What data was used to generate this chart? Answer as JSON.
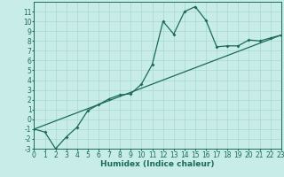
{
  "xlabel": "Humidex (Indice chaleur)",
  "bg_color": "#c8ece8",
  "grid_color": "#a8d8d0",
  "line_color": "#1a6b5a",
  "curve_x": [
    0,
    1,
    2,
    3,
    4,
    5,
    6,
    7,
    8,
    9,
    10,
    11,
    12,
    13,
    14,
    15,
    16,
    17,
    18,
    19,
    20,
    21,
    22,
    23
  ],
  "curve_y": [
    -1.0,
    -1.3,
    -3.0,
    -1.8,
    -0.8,
    0.9,
    1.5,
    2.1,
    2.5,
    2.6,
    3.6,
    5.6,
    10.0,
    8.7,
    11.0,
    11.5,
    10.1,
    7.4,
    7.5,
    7.5,
    8.1,
    8.0,
    8.3,
    8.6
  ],
  "trend_x": [
    0,
    23
  ],
  "trend_y": [
    -1.0,
    8.6
  ],
  "ylim": [
    -3,
    12
  ],
  "xlim": [
    0,
    23
  ],
  "yticks": [
    -3,
    -2,
    -1,
    0,
    1,
    2,
    3,
    4,
    5,
    6,
    7,
    8,
    9,
    10,
    11
  ],
  "xticks": [
    0,
    1,
    2,
    3,
    4,
    5,
    6,
    7,
    8,
    9,
    10,
    11,
    12,
    13,
    14,
    15,
    16,
    17,
    18,
    19,
    20,
    21,
    22,
    23
  ],
  "tick_fontsize": 5.5,
  "xlabel_fontsize": 6.5,
  "marker_size": 2.0,
  "linewidth": 0.9
}
